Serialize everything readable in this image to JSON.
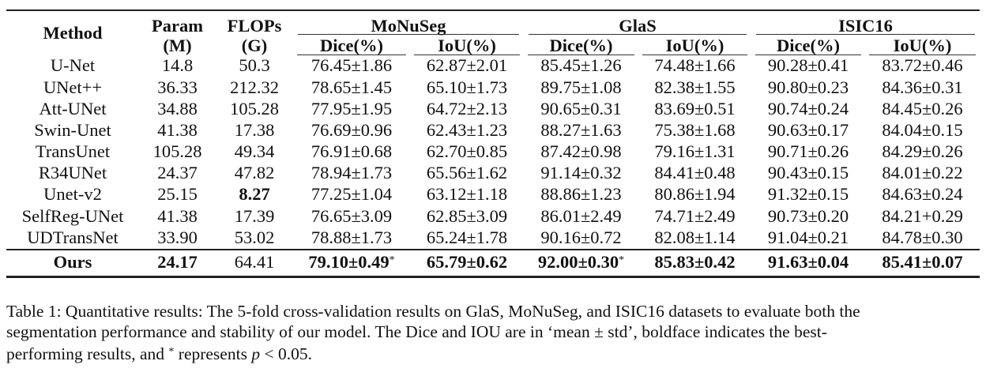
{
  "table": {
    "headers": {
      "method": "Method",
      "param": {
        "line1": "Param",
        "line2": "(M)"
      },
      "flops": {
        "line1": "FLOPs",
        "line2": "(G)"
      },
      "groups": [
        "MoNuSeg",
        "GlaS",
        "ISIC16"
      ],
      "sub": [
        "Dice(%)",
        "IoU(%)",
        "Dice(%)",
        "IoU(%)",
        "Dice(%)",
        "IoU(%)"
      ]
    },
    "rows": [
      {
        "method": "U-Net",
        "param": "14.8",
        "flops": "50.3",
        "cells": [
          "76.45±1.86",
          "62.87±2.01",
          "85.45±1.26",
          "74.48±1.66",
          "90.28±0.41",
          "83.72±0.46"
        ]
      },
      {
        "method": "UNet++",
        "param": "36.33",
        "flops": "212.32",
        "cells": [
          "78.65±1.45",
          "65.10±1.73",
          "89.75±1.08",
          "82.38±1.55",
          "90.80±0.23",
          "84.36±0.31"
        ]
      },
      {
        "method": "Att-UNet",
        "param": "34.88",
        "flops": "105.28",
        "cells": [
          "77.95±1.95",
          "64.72±2.13",
          "90.65±0.31",
          "83.69±0.51",
          "90.74±0.24",
          "84.45±0.26"
        ]
      },
      {
        "method": "Swin-Unet",
        "param": "41.38",
        "flops": "17.38",
        "cells": [
          "76.69±0.96",
          "62.43±1.23",
          "88.27±1.63",
          "75.38±1.68",
          "90.63±0.17",
          "84.04±0.15"
        ]
      },
      {
        "method": "TransUnet",
        "param": "105.28",
        "flops": "49.34",
        "cells": [
          "76.91±0.68",
          "62.70±0.85",
          "87.42±0.98",
          "79.16±1.31",
          "90.71±0.26",
          "84.29±0.26"
        ]
      },
      {
        "method": "R34UNet",
        "param": "24.37",
        "flops": "47.82",
        "cells": [
          "78.94±1.73",
          "65.56±1.62",
          "91.14±0.32",
          "84.41±0.48",
          "90.43±0.15",
          "84.01±0.22"
        ]
      },
      {
        "method": "Unet-v2",
        "param": "25.15",
        "flops": "8.27",
        "cells": [
          "77.25±1.04",
          "63.12±1.18",
          "88.86±1.23",
          "80.86±1.94",
          "91.32±0.15",
          "84.63±0.24"
        ]
      },
      {
        "method": "SelfReg-UNet",
        "param": "41.38",
        "flops": "17.39",
        "cells": [
          "76.65±3.09",
          "62.85±3.09",
          "86.01±2.49",
          "74.71±2.49",
          "90.73±0.20",
          "84.21+0.29"
        ]
      },
      {
        "method": "UDTransNet",
        "param": "33.90",
        "flops": "53.02",
        "cells": [
          "78.88±1.73",
          "65.24±1.78",
          "90.16±0.72",
          "82.08±1.14",
          "91.04±0.21",
          "84.78±0.30"
        ]
      }
    ],
    "ours": {
      "method": "Ours",
      "param": "24.17",
      "flops": "64.41",
      "cells": [
        "79.10±0.49",
        "65.79±0.62",
        "92.00±0.30",
        "85.83±0.42",
        "91.63±0.04",
        "85.41±0.07"
      ],
      "star": "*"
    }
  },
  "caption": {
    "line1": "Table 1: Quantitative results: The 5-fold cross-validation results on GlaS, MoNuSeg, and ISIC16 datasets to evaluate both the",
    "line2": "segmentation performance and stability of our model. The Dice and IOU are in ‘mean ± std’, boldface indicates the best-",
    "line3_a": "performing results, and ",
    "line3_star": "*",
    "line3_b": " represents ",
    "line3_p": "p",
    "line3_c": " < 0.05."
  }
}
